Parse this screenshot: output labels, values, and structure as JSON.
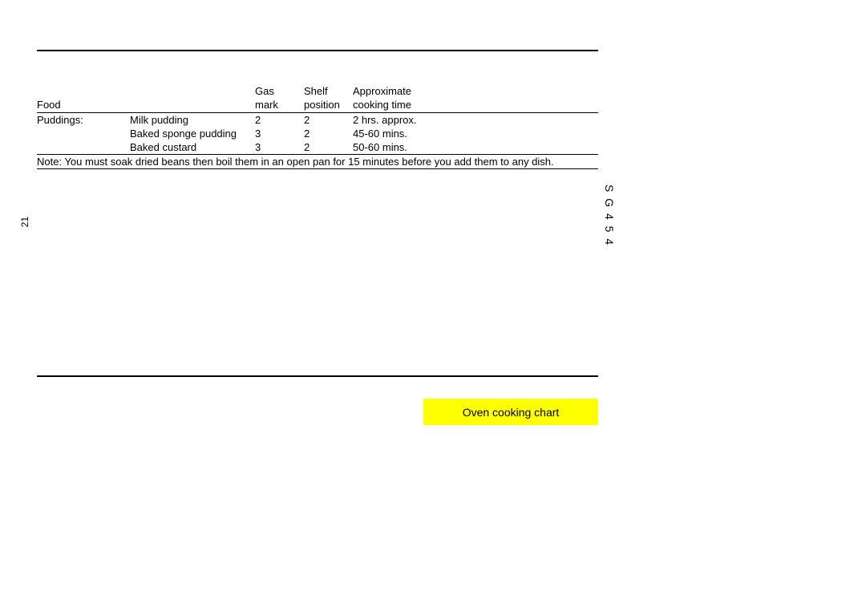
{
  "headers": {
    "food": "Food",
    "gas1": "Gas",
    "gas2": "mark",
    "shelf1": "Shelf",
    "shelf2": "position",
    "time1": "Approximate",
    "time2": "cooking time"
  },
  "rows": [
    {
      "category": "Puddings:",
      "item": "Milk pudding",
      "gas": "2",
      "shelf": "2",
      "time": "2 hrs. approx."
    },
    {
      "category": "",
      "item": "Baked sponge pudding",
      "gas": "3",
      "shelf": "2",
      "time": "45-60 mins."
    },
    {
      "category": "",
      "item": "Baked custard",
      "gas": "3",
      "shelf": "2",
      "time": "50-60 mins."
    }
  ],
  "note": "Note: You must soak dried beans then boil them in an open pan for 15 minutes before you add them to any dish.",
  "callout": "Oven cooking chart",
  "side_label": "S G  4 5 4",
  "page_number": "21",
  "colors": {
    "callout_bg": "#ffff00",
    "text": "#000000",
    "bg": "#ffffff"
  }
}
